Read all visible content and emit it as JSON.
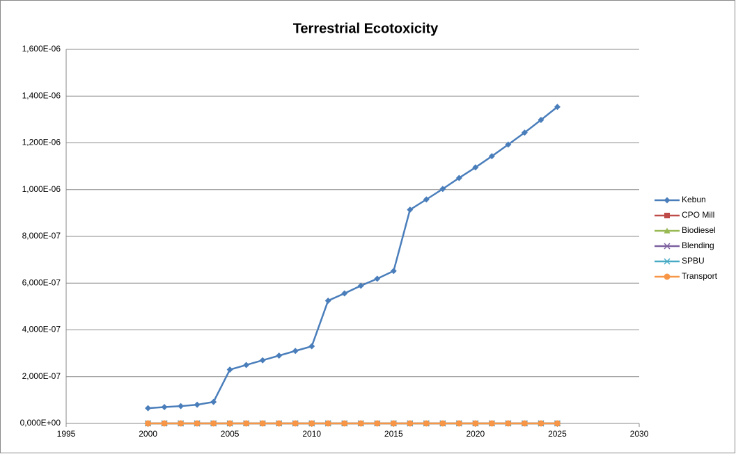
{
  "chart_data": {
    "type": "line",
    "title": "Terrestrial Ecotoxicity",
    "x": [
      2000,
      2001,
      2002,
      2003,
      2004,
      2005,
      2006,
      2007,
      2008,
      2009,
      2010,
      2011,
      2012,
      2013,
      2014,
      2015,
      2016,
      2017,
      2018,
      2019,
      2020,
      2021,
      2022,
      2023,
      2024,
      2025
    ],
    "series": [
      {
        "name": "Kebun",
        "color": "#4a7ebb",
        "marker": "diamond",
        "values": [
          6.5e-08,
          7e-08,
          7.4e-08,
          8e-08,
          9.2e-08,
          2.3e-07,
          2.5e-07,
          2.7e-07,
          2.9e-07,
          3.1e-07,
          3.3e-07,
          5.25e-07,
          5.56e-07,
          5.89e-07,
          6.19e-07,
          6.52e-07,
          9.14e-07,
          9.58e-07,
          1.003e-06,
          1.05e-06,
          1.095e-06,
          1.143e-06,
          1.193e-06,
          1.244e-06,
          1.298e-06,
          1.354e-06
        ]
      },
      {
        "name": "CPO Mill",
        "color": "#be4b48",
        "marker": "square",
        "values": [
          0,
          0,
          0,
          0,
          0,
          0,
          0,
          0,
          0,
          0,
          0,
          0,
          0,
          0,
          0,
          0,
          0,
          0,
          0,
          0,
          0,
          0,
          0,
          0,
          0,
          0
        ]
      },
      {
        "name": "Biodiesel",
        "color": "#98b954",
        "marker": "triangle",
        "values": [
          0,
          0,
          0,
          0,
          0,
          0,
          0,
          0,
          0,
          0,
          0,
          0,
          0,
          0,
          0,
          0,
          0,
          0,
          0,
          0,
          0,
          0,
          0,
          0,
          0,
          0
        ]
      },
      {
        "name": "Blending",
        "color": "#7d60a0",
        "marker": "x",
        "values": [
          0,
          0,
          0,
          0,
          0,
          0,
          0,
          0,
          0,
          0,
          0,
          0,
          0,
          0,
          0,
          0,
          0,
          0,
          0,
          0,
          0,
          0,
          0,
          0,
          0,
          0
        ]
      },
      {
        "name": "SPBU",
        "color": "#46aac5",
        "marker": "star",
        "values": [
          0,
          0,
          0,
          0,
          0,
          0,
          0,
          0,
          0,
          0,
          0,
          0,
          0,
          0,
          0,
          0,
          0,
          0,
          0,
          0,
          0,
          0,
          0,
          0,
          0,
          0
        ]
      },
      {
        "name": "Transport",
        "color": "#f79646",
        "marker": "circle",
        "values": [
          0,
          0,
          0,
          0,
          0,
          0,
          0,
          0,
          0,
          0,
          0,
          0,
          0,
          0,
          0,
          0,
          0,
          0,
          0,
          0,
          0,
          0,
          0,
          0,
          0,
          0
        ]
      }
    ],
    "xlim": [
      1995,
      2030
    ],
    "xticks": [
      1995,
      2000,
      2005,
      2010,
      2015,
      2020,
      2025,
      2030
    ],
    "ylim": [
      0,
      1.6e-06
    ],
    "yticks": [
      {
        "value": 0,
        "label": "0,000E+00"
      },
      {
        "value": 2e-07,
        "label": "2,000E-07"
      },
      {
        "value": 4e-07,
        "label": "4,000E-07"
      },
      {
        "value": 6e-07,
        "label": "6,000E-07"
      },
      {
        "value": 8e-07,
        "label": "8,000E-07"
      },
      {
        "value": 1e-06,
        "label": "1,000E-06"
      },
      {
        "value": 1.2e-06,
        "label": "1,200E-06"
      },
      {
        "value": 1.4e-06,
        "label": "1,400E-06"
      },
      {
        "value": 1.6e-06,
        "label": "1,600E-06"
      }
    ],
    "grid": true,
    "legend": "right"
  }
}
